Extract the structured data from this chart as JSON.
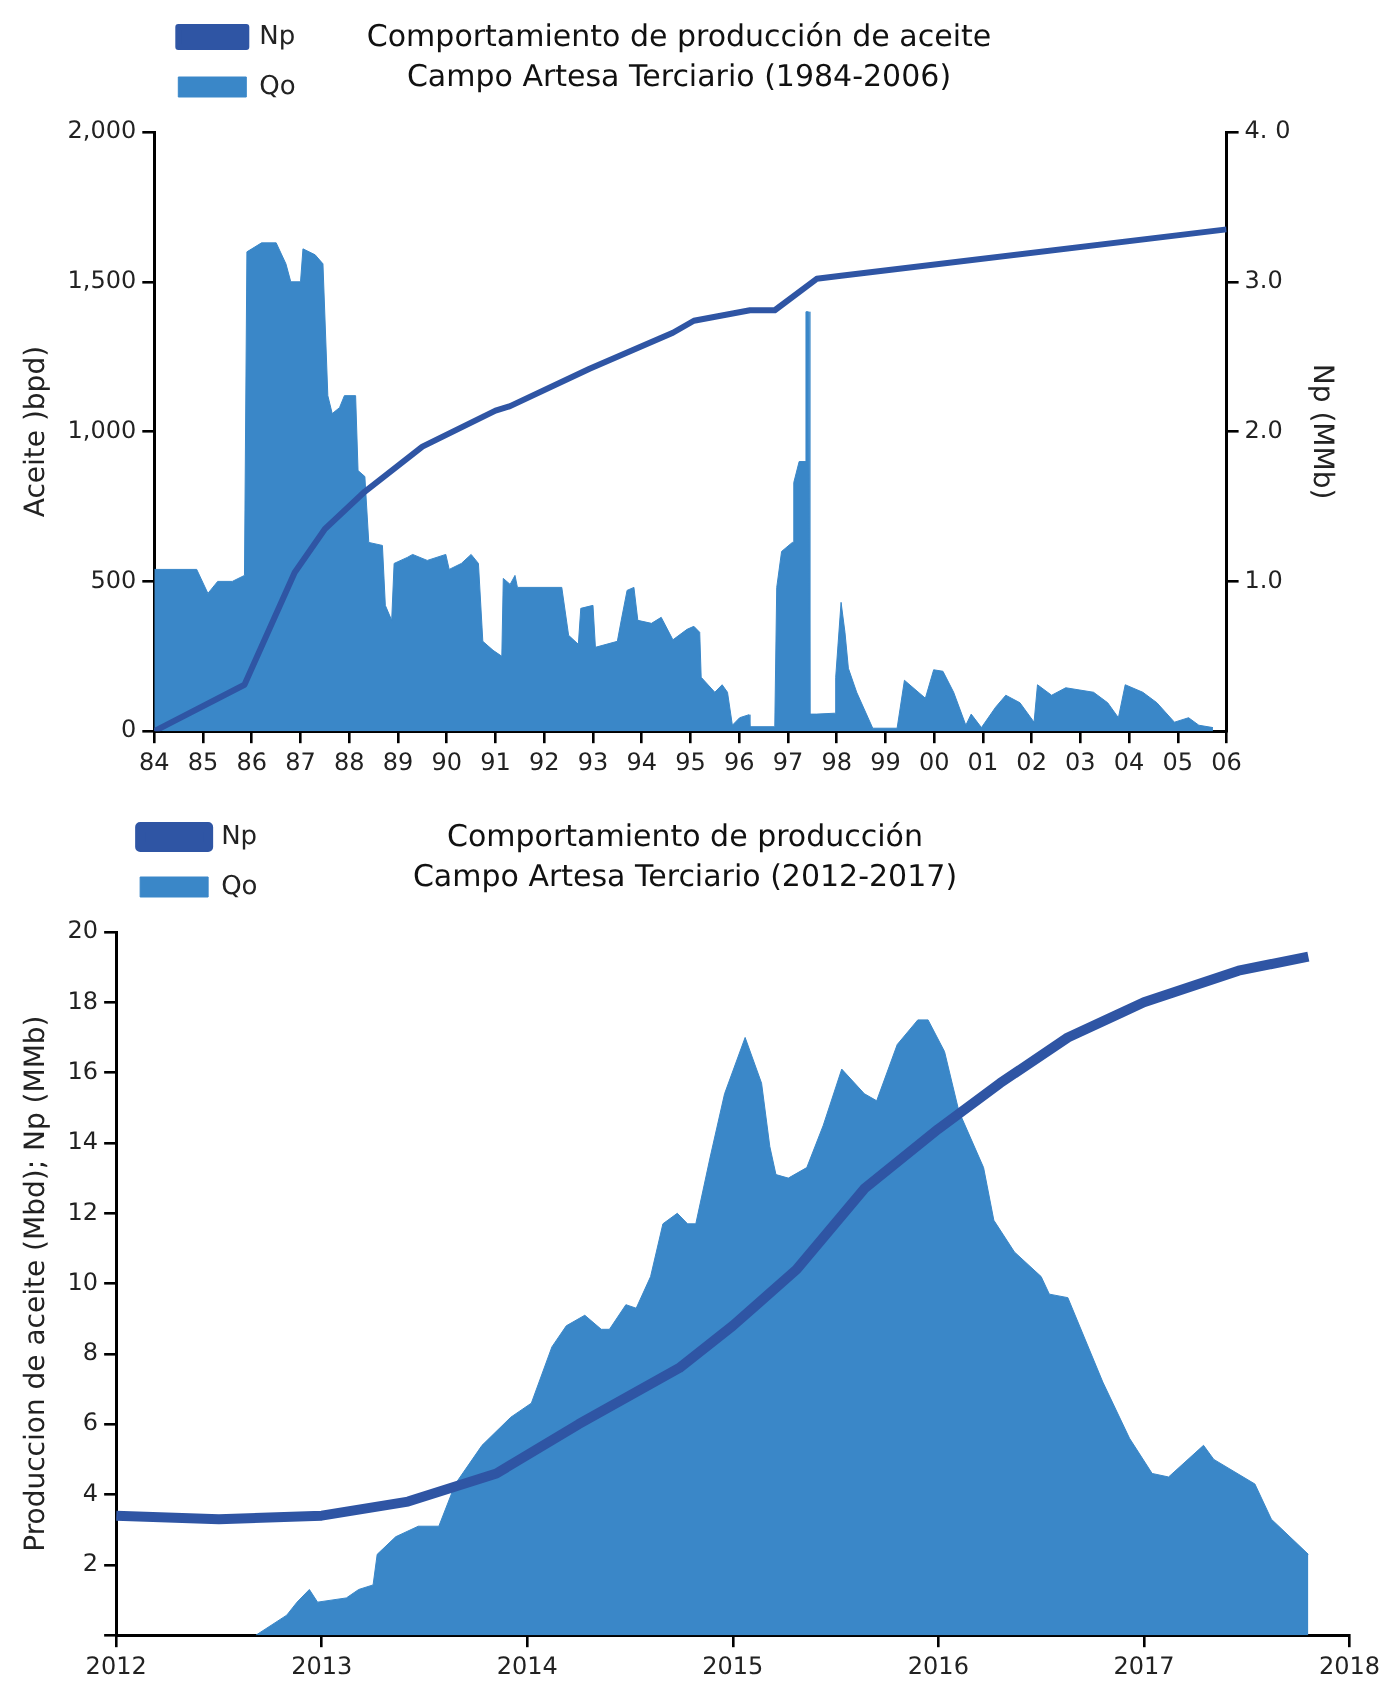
{
  "chart_data": [
    {
      "type": "line",
      "title": "Comportamiento de producción de aceite",
      "subtitle": "Campo Artesa Terciario (1984-2006)",
      "ylabel": "Aceite )bpd)",
      "y2label": "Np (MMb)",
      "xlim": [
        1984,
        2006
      ],
      "xticks": [
        {
          "value": 1984,
          "label": "84"
        },
        {
          "value": 1985,
          "label": "85"
        },
        {
          "value": 1986,
          "label": "86"
        },
        {
          "value": 1987,
          "label": "87"
        },
        {
          "value": 1988,
          "label": "88"
        },
        {
          "value": 1989,
          "label": "89"
        },
        {
          "value": 1990,
          "label": "90"
        },
        {
          "value": 1991,
          "label": "91"
        },
        {
          "value": 1992,
          "label": "92"
        },
        {
          "value": 1993,
          "label": "93"
        },
        {
          "value": 1994,
          "label": "94"
        },
        {
          "value": 1995,
          "label": "95"
        },
        {
          "value": 1996,
          "label": "96"
        },
        {
          "value": 1997,
          "label": "97"
        },
        {
          "value": 1998,
          "label": "98"
        },
        {
          "value": 1999,
          "label": "99"
        },
        {
          "value": 2000,
          "label": "00"
        },
        {
          "value": 2001,
          "label": "01"
        },
        {
          "value": 2002,
          "label": "02"
        },
        {
          "value": 2003,
          "label": "03"
        },
        {
          "value": 2004,
          "label": "04"
        },
        {
          "value": 2005,
          "label": "05"
        },
        {
          "value": 2006,
          "label": "06"
        }
      ],
      "ylim": [
        0,
        2000
      ],
      "yticks": [
        {
          "value": 0,
          "label": "0"
        },
        {
          "value": 500,
          "label": "500"
        },
        {
          "value": 1000,
          "label": "1,000"
        },
        {
          "value": 1500,
          "label": "1,500"
        },
        {
          "value": 2000,
          "label": "2,000"
        }
      ],
      "y2lim": [
        0,
        4
      ],
      "y2ticks": [
        {
          "value": 1,
          "label": "1.0"
        },
        {
          "value": 2,
          "label": "2.0"
        },
        {
          "value": 3,
          "label": "3.0"
        },
        {
          "value": 4,
          "label": "4. 0"
        }
      ],
      "grid": false,
      "legend": "top left",
      "series": [
        {
          "name": "Qo",
          "type": "area",
          "color": "#3a87c8",
          "x": [
            1984,
            1984.87,
            1985.1,
            1985.3,
            1985.6,
            1985.85,
            1985.9,
            1986.0,
            1986.2,
            1986.5,
            1986.7,
            1986.8,
            1987.0,
            1987.05,
            1987.3,
            1987.46,
            1987.56,
            1987.65,
            1987.8,
            1987.9,
            1988.13,
            1988.18,
            1988.32,
            1988.4,
            1988.68,
            1988.74,
            1988.87,
            1988.92,
            1989.19,
            1989.3,
            1989.6,
            1989.98,
            1990.05,
            1990.3,
            1990.5,
            1990.65,
            1990.74,
            1990.95,
            1991.13,
            1991.16,
            1991.3,
            1991.4,
            1991.45,
            1992.36,
            1992.5,
            1992.7,
            1992.75,
            1993.0,
            1993.05,
            1993.5,
            1993.58,
            1993.7,
            1993.84,
            1993.92,
            1994.2,
            1994.4,
            1994.64,
            1994.93,
            1995.07,
            1995.19,
            1995.22,
            1995.5,
            1995.65,
            1995.76,
            1995.86,
            1996.01,
            1996.2,
            1996.22,
            1996.73,
            1996.77,
            1996.87,
            1997.09,
            1997.12,
            1997.23,
            1997.33,
            1997.37,
            1997.42,
            1997.45,
            1997.59,
            1997.95,
            1997.98,
            1998.09,
            1998.17,
            1998.24,
            1998.41,
            1998.74,
            1999.24,
            1999.39,
            1999.82,
            1999.99,
            2000.18,
            2000.4,
            2000.65,
            2000.76,
            2000.97,
            2001.26,
            2001.47,
            2001.76,
            2002.05,
            2002.12,
            2002.41,
            2002.7,
            2003.27,
            2003.56,
            2003.78,
            2003.92,
            2004.28,
            2004.57,
            2004.93,
            2005.22,
            2005.43,
            2005.72
          ],
          "values": [
            540,
            540,
            460,
            500,
            500,
            520,
            1600,
            1610,
            1630,
            1630,
            1560,
            1500,
            1500,
            1610,
            1590,
            1560,
            1120,
            1060,
            1080,
            1120,
            1120,
            870,
            850,
            630,
            620,
            420,
            370,
            560,
            580,
            590,
            570,
            590,
            540,
            560,
            590,
            560,
            300,
            270,
            250,
            510,
            490,
            520,
            480,
            480,
            320,
            290,
            410,
            420,
            280,
            300,
            370,
            470,
            480,
            370,
            360,
            380,
            305,
            340,
            350,
            330,
            180,
            130,
            155,
            130,
            20,
            45,
            55,
            15,
            15,
            480,
            600,
            630,
            830,
            900,
            900,
            1400,
            1400,
            57,
            57,
            60,
            180,
            430,
            330,
            210,
            130,
            10,
            10,
            170,
            110,
            205,
            200,
            130,
            20,
            57,
            12,
            80,
            120,
            95,
            30,
            155,
            120,
            145,
            130,
            95,
            45,
            155,
            130,
            95,
            30,
            45,
            20,
            12
          ]
        },
        {
          "name": "Np",
          "type": "line",
          "axis": "y2",
          "color": "#2f55a4",
          "x": [
            1984,
            1985.85,
            1986.88,
            1987.5,
            1988.32,
            1989.5,
            1991,
            1991.3,
            1992.93,
            1994.64,
            1995.07,
            1996.22,
            1996.73,
            1997.59,
            1998.09,
            2006
          ],
          "values": [
            0,
            0.31,
            1.06,
            1.35,
            1.6,
            1.9,
            2.14,
            2.17,
            2.42,
            2.66,
            2.74,
            2.81,
            2.81,
            3.02,
            3.04,
            3.35
          ]
        }
      ]
    },
    {
      "type": "line",
      "title": "Comportamiento de producción",
      "subtitle": "Campo Artesa Terciario (2012-2017)",
      "ylabel": "Produccion de aceite (Mbd); Np (MMb)",
      "xlim": [
        2012,
        2018
      ],
      "xticks": [
        2012,
        2013,
        2014,
        2015,
        2016,
        2017,
        2018
      ],
      "ylim": [
        0,
        20
      ],
      "yticks": [
        {
          "value": 0,
          "label": null
        },
        2,
        4,
        6,
        8,
        10,
        12,
        14,
        16,
        18,
        20
      ],
      "grid": false,
      "legend": "top left",
      "series": [
        {
          "name": "Qo",
          "type": "area",
          "color": "#3a87c8",
          "x": [
            2012.68,
            2012.83,
            2012.88,
            2012.94,
            2012.98,
            2013.12,
            2013.18,
            2013.25,
            2013.27,
            2013.36,
            2013.47,
            2013.57,
            2013.65,
            2013.78,
            2013.92,
            2014.02,
            2014.12,
            2014.19,
            2014.28,
            2014.36,
            2014.4,
            2014.48,
            2014.53,
            2014.6,
            2014.66,
            2014.73,
            2014.78,
            2014.82,
            2014.89,
            2014.96,
            2015.06,
            2015.14,
            2015.18,
            2015.21,
            2015.27,
            2015.36,
            2015.44,
            2015.53,
            2015.64,
            2015.7,
            2015.8,
            2015.9,
            2015.95,
            2016.03,
            2016.1,
            2016.22,
            2016.27,
            2016.37,
            2016.5,
            2016.54,
            2016.63,
            2016.8,
            2016.93,
            2017.04,
            2017.12,
            2017.29,
            2017.34,
            2017.54,
            2017.62,
            2017.8
          ],
          "values": [
            0,
            0.57,
            0.94,
            1.3,
            0.94,
            1.06,
            1.3,
            1.43,
            2.3,
            2.8,
            3.1,
            3.1,
            4.3,
            5.4,
            6.2,
            6.6,
            8.2,
            8.8,
            9.1,
            8.7,
            8.7,
            9.4,
            9.3,
            10.2,
            11.7,
            12.0,
            11.7,
            11.7,
            13.6,
            15.4,
            17.0,
            15.7,
            13.9,
            13.1,
            13.0,
            13.3,
            14.5,
            16.1,
            15.4,
            15.2,
            16.8,
            17.5,
            17.5,
            16.6,
            14.9,
            13.3,
            11.8,
            10.9,
            10.2,
            9.7,
            9.6,
            7.2,
            5.6,
            4.6,
            4.5,
            5.4,
            5.0,
            4.3,
            3.3,
            2.3
          ]
        },
        {
          "name": "Np",
          "type": "line",
          "color": "#2f55a4",
          "x": [
            2012,
            2012.5,
            2013,
            2013.42,
            2013.85,
            2014.25,
            2014.74,
            2015,
            2015.31,
            2015.64,
            2016,
            2016.3,
            2016.63,
            2017,
            2017.46,
            2017.8
          ],
          "values": [
            3.4,
            3.3,
            3.4,
            3.8,
            4.6,
            6.0,
            7.6,
            8.8,
            10.4,
            12.7,
            14.4,
            15.7,
            17.0,
            18.0,
            18.9,
            19.3
          ]
        }
      ]
    }
  ]
}
